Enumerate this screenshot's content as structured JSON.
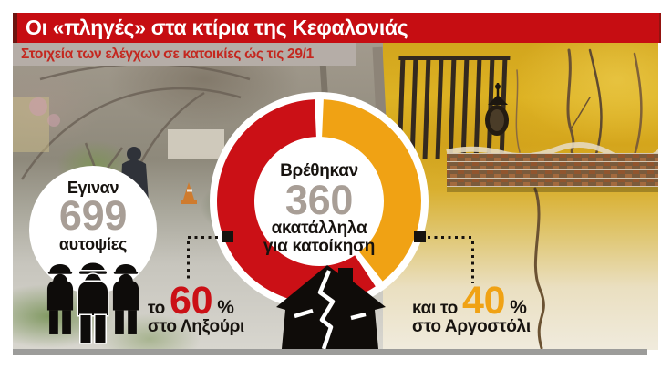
{
  "header": {
    "title": "Οι «πληγές» στα κτίρια της Κεφαλονιάς"
  },
  "subheader": {
    "text": "Στοιχεία των ελέγχων σε κατοικίες ώς τις 29/1"
  },
  "callouts": {
    "left_prefix": "το",
    "right_prefix": "και το"
  },
  "colors": {
    "header_red": "#c60d12",
    "subheader_bg": "#b5ada7",
    "subheader_text": "#c4271f",
    "donut_red": "#cb1016",
    "donut_orange": "#f0a214",
    "big_number_gray": "#a89e96",
    "text_black": "#17130f",
    "bottom_bar_gray": "#9c9c9a"
  },
  "chart_data": {
    "type": "pie",
    "variant": "donut",
    "title": "Οι «πληγές» στα κτίρια της Κεφαλονιάς",
    "subtitle": "Στοιχεία των ελέγχων σε κατοικίες ώς τις 29/1",
    "direction": "counterclockwise-from-top",
    "gap_deg": 5,
    "legend": "none",
    "slices": [
      {
        "label": "στο Ληξούρι",
        "value": 60,
        "unit": "%",
        "color": "#cb1016"
      },
      {
        "label": "στο Αργοστόλι",
        "value": 40,
        "unit": "%",
        "color": "#f0a214"
      }
    ],
    "center_label": {
      "intro": "Βρέθηκαν",
      "value": 360,
      "line1": "ακατάλληλα",
      "line2": "για κατοίκηση"
    },
    "annotation": {
      "intro": "Εγιναν",
      "value": 699,
      "text": "αυτοψίες"
    }
  }
}
